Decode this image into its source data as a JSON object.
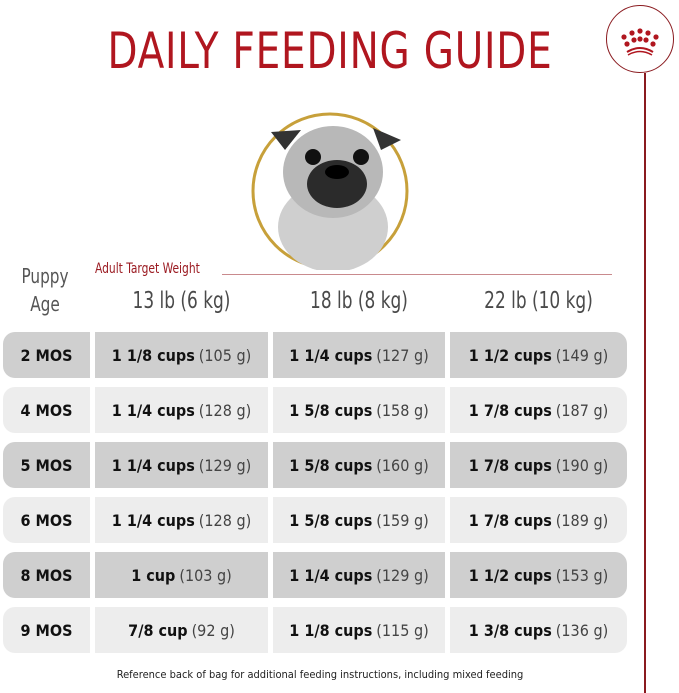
{
  "title": "DAILY FEEDING GUIDE",
  "logo": "Royal Canin crown",
  "colors": {
    "brand_red": "#b0161f",
    "dark_row": "#cfcfcf",
    "light_row": "#ededed",
    "gold_ring": "#c7a03a"
  },
  "header": {
    "puppy_age": "Puppy Age",
    "adult_target_weight": "Adult Target Weight",
    "weights": [
      "13 lb (6 kg)",
      "18 lb (8 kg)",
      "22 lb (10 kg)"
    ]
  },
  "rows": [
    {
      "age": "2 MOS",
      "cells": [
        {
          "cups": "1 1/8 cups",
          "grams": "(105 g)"
        },
        {
          "cups": "1 1/4 cups",
          "grams": "(127 g)"
        },
        {
          "cups": "1 1/2 cups",
          "grams": "(149 g)"
        }
      ]
    },
    {
      "age": "4 MOS",
      "cells": [
        {
          "cups": "1 1/4 cups",
          "grams": "(128 g)"
        },
        {
          "cups": "1 5/8 cups",
          "grams": "(158 g)"
        },
        {
          "cups": "1 7/8 cups",
          "grams": "(187 g)"
        }
      ]
    },
    {
      "age": "5 MOS",
      "cells": [
        {
          "cups": "1 1/4 cups",
          "grams": "(129 g)"
        },
        {
          "cups": "1 5/8 cups",
          "grams": "(160 g)"
        },
        {
          "cups": "1 7/8 cups",
          "grams": "(190 g)"
        }
      ]
    },
    {
      "age": "6 MOS",
      "cells": [
        {
          "cups": "1 1/4 cups",
          "grams": "(128 g)"
        },
        {
          "cups": "1 5/8 cups",
          "grams": "(159 g)"
        },
        {
          "cups": "1 7/8 cups",
          "grams": "(189 g)"
        }
      ]
    },
    {
      "age": "8 MOS",
      "cells": [
        {
          "cups": "1 cup",
          "grams": "(103 g)"
        },
        {
          "cups": "1 1/4 cups",
          "grams": "(129 g)"
        },
        {
          "cups": "1 1/2 cups",
          "grams": "(153 g)"
        }
      ]
    },
    {
      "age": "9 MOS",
      "cells": [
        {
          "cups": "7/8 cup",
          "grams": "(92 g)"
        },
        {
          "cups": "1 1/8 cups",
          "grams": "(115 g)"
        },
        {
          "cups": "1 3/8 cups",
          "grams": "(136 g)"
        }
      ]
    }
  ],
  "footer": "Reference back of bag for additional feeding instructions, including mixed feeding"
}
